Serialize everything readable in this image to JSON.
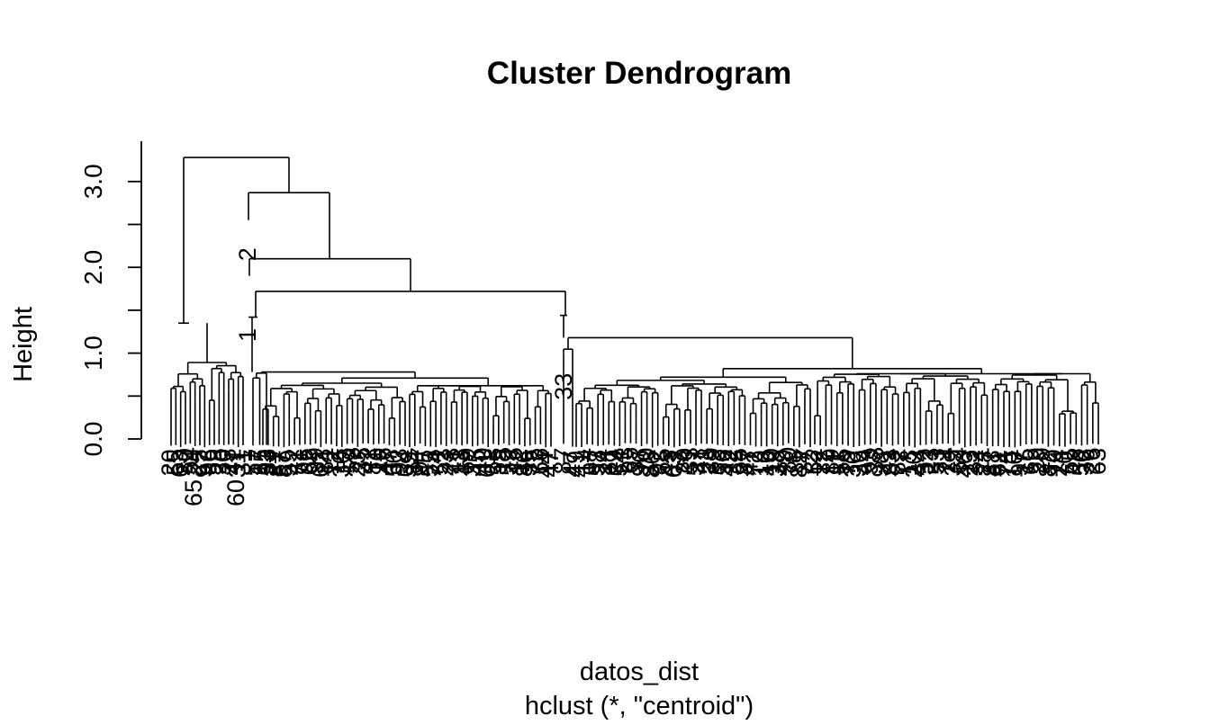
{
  "chart_data": {
    "type": "dendrogram",
    "title": "Cluster Dendrogram",
    "xlabel": "datos_dist",
    "sub": "hclust (*, \"centroid\")",
    "ylabel": "Height",
    "ylim": [
      0,
      3.5
    ],
    "yticks": [
      "0.0",
      "0.5",
      "1.0",
      "1.5",
      "2.0",
      "2.5",
      "3.0"
    ],
    "ytick_values": [
      0,
      0.5,
      1.0,
      1.5,
      2.0,
      2.5,
      3.0
    ],
    "major_merges": [
      {
        "height": 3.28,
        "left": "cluster-far-left",
        "right": "rest"
      },
      {
        "height": 2.87,
        "left": "leaf-2",
        "right": "merge-2.1"
      },
      {
        "height": 2.1,
        "left": "leaf-1-group",
        "right": "merge-1.72"
      },
      {
        "height": 1.72,
        "left": "cluster-left-middle",
        "right": "cluster-right"
      },
      {
        "height": 1.44,
        "left": "cluster-right-core",
        "right": "outlier"
      },
      {
        "height": 1.35,
        "left": "cluster-far-left-core",
        "right": "outlier"
      },
      {
        "height": 0.82,
        "left": "cluster-right-a",
        "right": "cluster-right-b"
      },
      {
        "height": 0.71,
        "left": "cluster-left-middle-a",
        "right": "cluster-left-middle-b"
      }
    ],
    "visible_leaf_labels": [
      "2",
      "1",
      "33",
      "65",
      "60"
    ],
    "n_leaves": 200
  }
}
